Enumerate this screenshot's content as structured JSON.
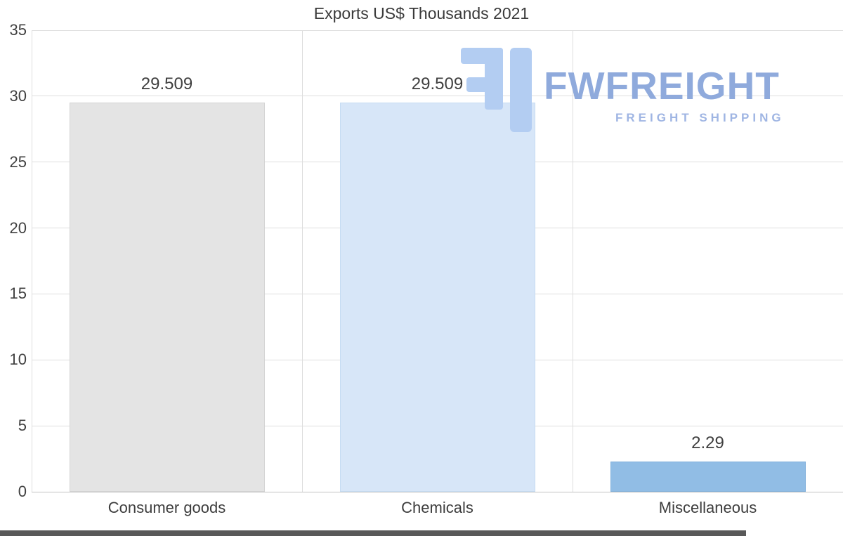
{
  "chart_data": {
    "type": "bar",
    "title": "Exports US$ Thousands 2021",
    "categories": [
      "Consumer goods",
      "Chemicals",
      "Miscellaneous"
    ],
    "values": [
      29.509,
      29.509,
      2.29
    ],
    "value_labels": [
      "29.509",
      "29.509",
      "2.29"
    ],
    "bar_colors": [
      "#e4e4e4",
      "#d7e6f8",
      "#91bde5"
    ],
    "bar_border_colors": [
      "#d4d4d4",
      "#c6dcf3",
      "#82b1dc"
    ],
    "y_ticks": [
      0,
      5,
      10,
      15,
      20,
      25,
      30,
      35
    ],
    "ylim": [
      0,
      35
    ],
    "xlabel": "",
    "ylabel": "",
    "grid": "horizontal gridlines plus vertical category separators",
    "legend": "none",
    "gridline_color": "#dedede",
    "baseline_color": "#c2c2c2"
  },
  "watermark": {
    "brand": "FWFREIGHT",
    "tagline": "FREIGHT SHIPPING",
    "brand_color": "#8faadc",
    "tagline_color": "#9fb5e3",
    "icon": "fwfreight-logo-icon",
    "icon_color": "#b3cdf2"
  },
  "bottom_bar": {
    "fill_percent": 88.5,
    "fill_color": "#595959"
  }
}
